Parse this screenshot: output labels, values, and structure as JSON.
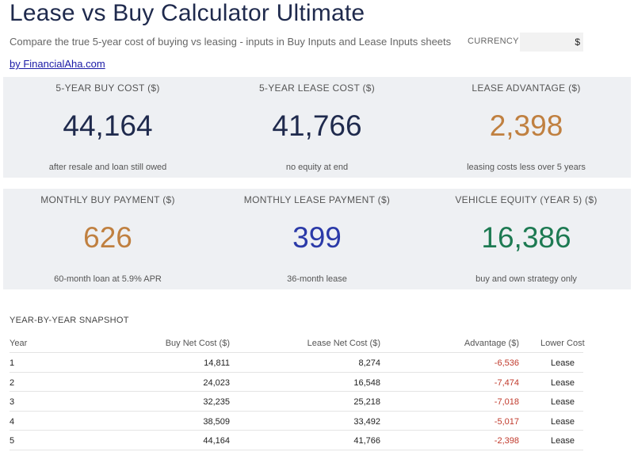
{
  "header": {
    "title": "Lease vs Buy Calculator Ultimate",
    "subtitle": "Compare the true 5-year cost of buying vs leasing - inputs in Buy Inputs and Lease Inputs sheets",
    "byline": "by FinancialAha.com",
    "currency_label": "CURRENCY",
    "currency_value": "$"
  },
  "kpis_row1": [
    {
      "label": "5-YEAR BUY COST ($)",
      "value": "44,164",
      "note": "after resale and loan still owed",
      "color": "#1f2a4d"
    },
    {
      "label": "5-YEAR LEASE COST ($)",
      "value": "41,766",
      "note": "no equity at end",
      "color": "#1f2a4d"
    },
    {
      "label": "LEASE ADVANTAGE ($)",
      "value": "2,398",
      "note": "leasing costs less over 5 years",
      "color": "#c08040"
    }
  ],
  "kpis_row2": [
    {
      "label": "MONTHLY BUY PAYMENT ($)",
      "value": "626",
      "note": "60-month loan at 5.9% APR",
      "color": "#c08040"
    },
    {
      "label": "MONTHLY LEASE PAYMENT ($)",
      "value": "399",
      "note": "36-month lease",
      "color": "#2b3aa8"
    },
    {
      "label": "VEHICLE EQUITY (YEAR 5) ($)",
      "value": "16,386",
      "note": "buy and own strategy only",
      "color": "#1d7a52"
    }
  ],
  "snapshot": {
    "title": "YEAR-BY-YEAR SNAPSHOT",
    "columns": [
      "Year",
      "Buy Net Cost ($)",
      "Lease Net Cost ($)",
      "Advantage ($)",
      "Lower Cost"
    ],
    "negative_color": "#c0392b",
    "rows": [
      [
        "1",
        "14,811",
        "8,274",
        "-6,536",
        "Lease"
      ],
      [
        "2",
        "24,023",
        "16,548",
        "-7,474",
        "Lease"
      ],
      [
        "3",
        "32,235",
        "25,218",
        "-7,018",
        "Lease"
      ],
      [
        "4",
        "38,509",
        "33,492",
        "-5,017",
        "Lease"
      ],
      [
        "5",
        "44,164",
        "41,766",
        "-2,398",
        "Lease"
      ]
    ]
  }
}
